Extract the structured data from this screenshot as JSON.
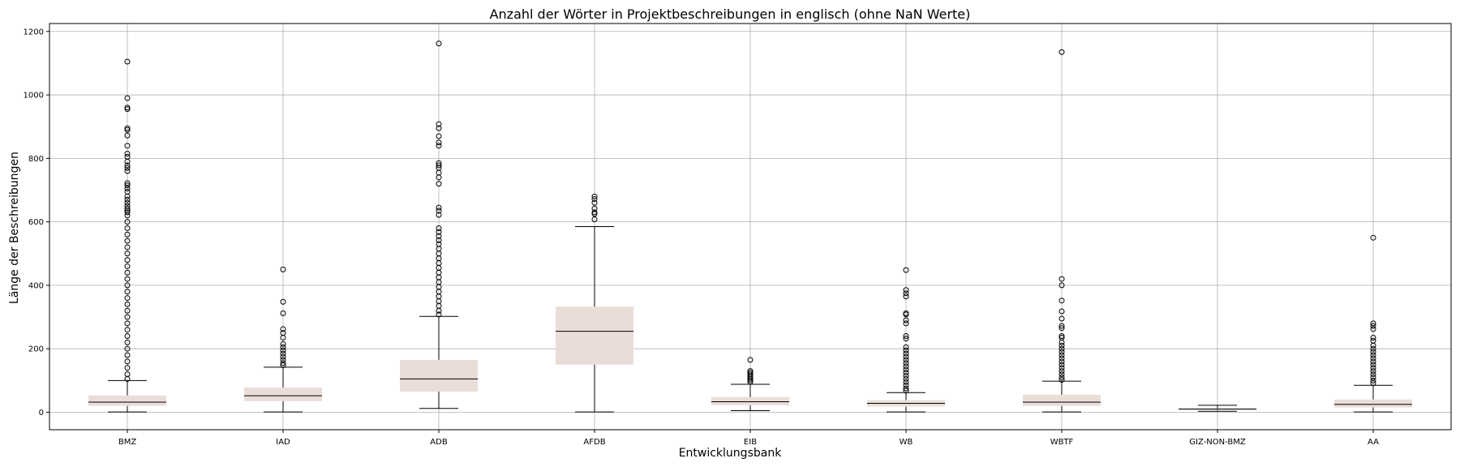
{
  "chart_data": {
    "type": "boxplot",
    "title": "Anzahl der Wörter in Projektbeschreibungen in englisch (ohne NaN Werte)",
    "xlabel": "Entwicklungsbank",
    "ylabel": "Länge der Beschreibungen",
    "ylim": [
      -55,
      1225
    ],
    "yticks": [
      0,
      200,
      400,
      600,
      800,
      1000,
      1200
    ],
    "grid": true,
    "colors": {
      "box_fill": "#eaddd8",
      "median": "#000000",
      "whisker": "#000000",
      "grid": "#b0b0b0"
    },
    "categories": [
      "BMZ",
      "IAD",
      "ADB",
      "AFDB",
      "EIB",
      "WB",
      "WBTF",
      "GIZ-NON-BMZ",
      "AA"
    ],
    "boxes": [
      {
        "name": "BMZ",
        "min": 1,
        "q1": 20,
        "median": 32,
        "q3": 53,
        "max": 100,
        "outliers": [
          1105,
          990,
          960,
          955,
          895,
          890,
          872,
          840,
          815,
          805,
          790,
          778,
          770,
          760,
          722,
          715,
          705,
          695,
          680,
          670,
          660,
          650,
          642,
          636,
          630,
          620,
          600,
          580,
          560,
          540,
          520,
          500,
          480,
          460,
          440,
          420,
          400,
          380,
          360,
          340,
          320,
          300,
          280,
          260,
          240,
          220,
          200,
          180,
          160,
          140,
          120,
          105
        ]
      },
      {
        "name": "IAD",
        "min": 1,
        "q1": 35,
        "median": 52,
        "q3": 78,
        "max": 142,
        "outliers": [
          450,
          348,
          312,
          262,
          250,
          235,
          215,
          205,
          195,
          185,
          175,
          165,
          155,
          148
        ]
      },
      {
        "name": "ADB",
        "min": 12,
        "q1": 65,
        "median": 105,
        "q3": 165,
        "max": 302,
        "outliers": [
          1162,
          908,
          895,
          870,
          850,
          840,
          785,
          778,
          770,
          755,
          740,
          720,
          645,
          635,
          622,
          580,
          568,
          555,
          542,
          530,
          515,
          500,
          485,
          470,
          455,
          440,
          425,
          410,
          395,
          380,
          365,
          350,
          335,
          320,
          308
        ]
      },
      {
        "name": "AFDB",
        "min": 1,
        "q1": 150,
        "median": 255,
        "q3": 333,
        "max": 585,
        "outliers": [
          680,
          672,
          660,
          642,
          630,
          625,
          608
        ]
      },
      {
        "name": "EIB",
        "min": 5,
        "q1": 22,
        "median": 33,
        "q3": 48,
        "max": 88,
        "outliers": [
          165,
          130,
          125,
          120,
          115,
          110,
          105,
          100,
          95
        ]
      },
      {
        "name": "WB",
        "min": 1,
        "q1": 18,
        "median": 28,
        "q3": 38,
        "max": 62,
        "outliers": [
          448,
          385,
          375,
          365,
          312,
          308,
          290,
          280,
          240,
          232,
          205,
          195,
          185,
          175,
          165,
          155,
          145,
          135,
          125,
          115,
          105,
          95,
          85,
          75,
          68
        ]
      },
      {
        "name": "WBTF",
        "min": 1,
        "q1": 20,
        "median": 32,
        "q3": 55,
        "max": 98,
        "outliers": [
          1135,
          420,
          400,
          352,
          318,
          295,
          272,
          265,
          240,
          235,
          220,
          210,
          200,
          190,
          180,
          170,
          160,
          150,
          140,
          130,
          120,
          110,
          102
        ]
      },
      {
        "name": "GIZ-NON-BMZ",
        "min": 3,
        "q1": 7,
        "median": 10,
        "q3": 12,
        "max": 22,
        "outliers": []
      },
      {
        "name": "AA",
        "min": 1,
        "q1": 15,
        "median": 25,
        "q3": 40,
        "max": 85,
        "outliers": [
          550,
          280,
          272,
          262,
          235,
          225,
          210,
          200,
          190,
          180,
          170,
          160,
          150,
          140,
          130,
          120,
          110,
          100,
          92
        ]
      }
    ]
  }
}
